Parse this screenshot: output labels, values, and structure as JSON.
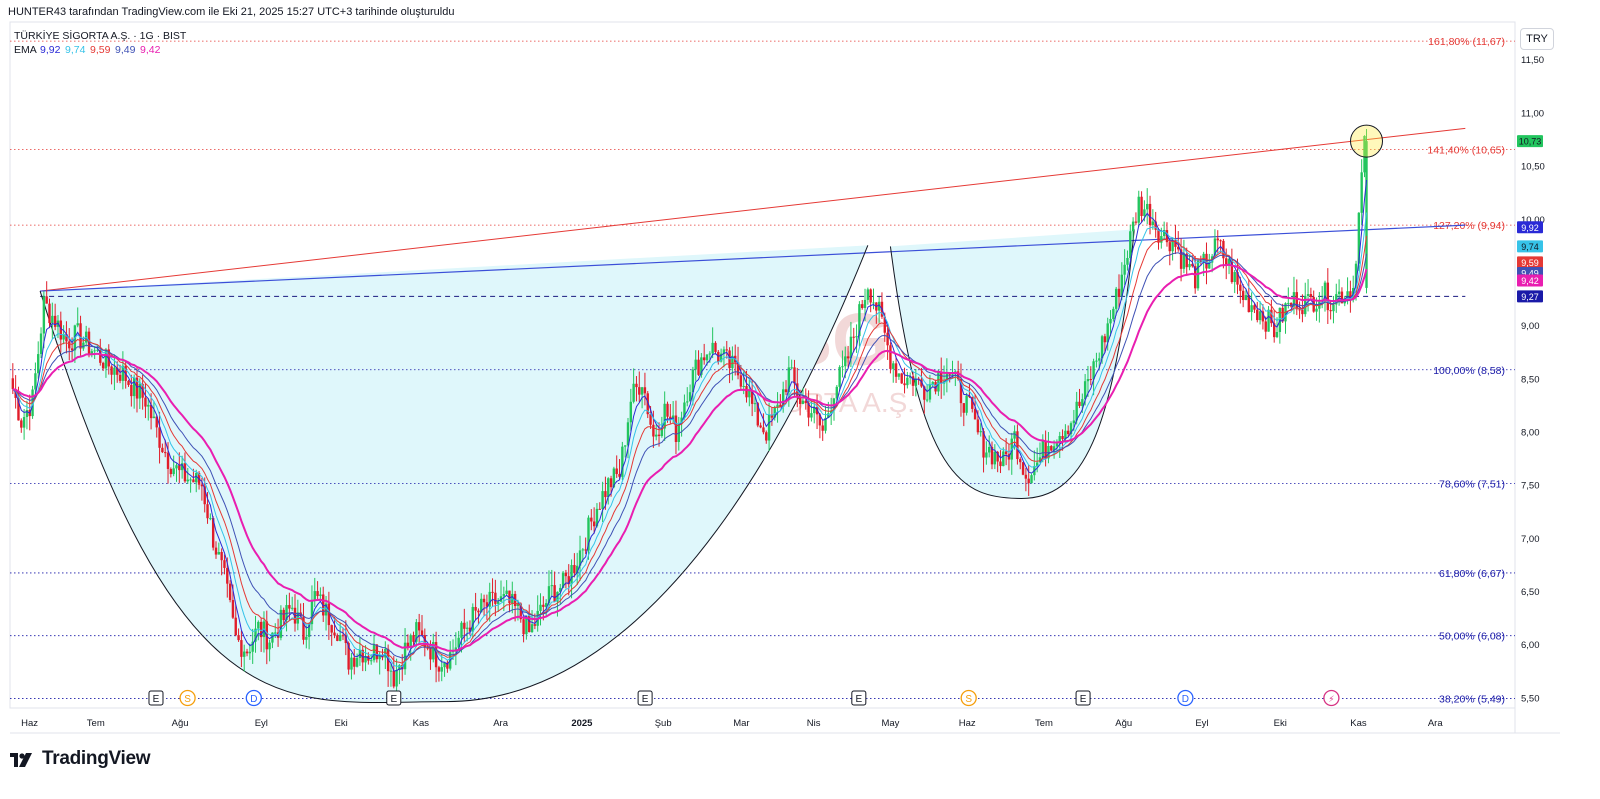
{
  "header": {
    "attribution": "HUNTER43 tarafından TradingView.com ile Eki 21, 2025 15:27 UTC+3 tarihinde oluşturuldu",
    "symbol_line": "TÜRKİYE SİGORTA A.Ş. · 1G · BIST",
    "ema_label": "EMA",
    "ema_values": [
      "9,92",
      "9,74",
      "9,59",
      "9,49",
      "9,42"
    ],
    "currency": "TRY"
  },
  "brand": {
    "name": "TradingView"
  },
  "watermark": {
    "ticker": "TURSG",
    "company": "TÜRKİYE SİGORTA A.Ş."
  },
  "colors": {
    "ema1": "#2a2ad6",
    "ema2": "#36c3e8",
    "ema3": "#e53935",
    "ema4": "#3f51b5",
    "ema5": "#e91eb0",
    "up": "#22c55e",
    "down": "#e11d2a",
    "fib": "#1a1aa8",
    "fib_red": "#e53935",
    "cup_fill": "#dff7fb",
    "price_badge": "#22c55e"
  },
  "chart_data": {
    "type": "line",
    "title": "",
    "ylim": [
      5.4,
      11.85
    ],
    "y_ticks": [
      "11,50",
      "11,00",
      "10,50",
      "10,00",
      "9,00",
      "8,50",
      "8,00",
      "7,50",
      "7,00",
      "6,50",
      "6,00",
      "5,50"
    ],
    "y_tick_values": [
      11.5,
      11.0,
      10.5,
      10.0,
      9.0,
      8.5,
      8.0,
      7.5,
      7.0,
      6.5,
      6.0,
      5.5
    ],
    "x_labels": [
      "Haz",
      "Tem",
      "Ağu",
      "Eyl",
      "Eki",
      "Kas",
      "Ara",
      "2025",
      "Şub",
      "Mar",
      "Nis",
      "May",
      "Haz",
      "Tem",
      "Ağu",
      "Eyl",
      "Eki",
      "Kas",
      "Ara"
    ],
    "fib_levels": [
      {
        "label": "161,80% (11,67)",
        "value": 11.67,
        "color": "red"
      },
      {
        "label": "141,40% (10,65)",
        "value": 10.65,
        "color": "red"
      },
      {
        "label": "127,20% (9,94)",
        "value": 9.94,
        "color": "red"
      },
      {
        "label": "100,00% (8,58)",
        "value": 8.58,
        "color": "blue"
      },
      {
        "label": "78,60% (7,51)",
        "value": 7.51,
        "color": "blue"
      },
      {
        "label": "61,80% (6,67)",
        "value": 6.67,
        "color": "blue"
      },
      {
        "label": "50,00% (6,08)",
        "value": 6.08,
        "color": "blue"
      },
      {
        "label": "38,20% (5,49)",
        "value": 5.49,
        "color": "blue"
      }
    ],
    "price_badges": [
      {
        "label": "10,73",
        "value": 10.73,
        "color": "#22c55e"
      },
      {
        "label": "9,92",
        "value": 9.92,
        "color": "#2a2ad6"
      },
      {
        "label": "9,74",
        "value": 9.74,
        "color": "#36c3e8"
      },
      {
        "label": "9,59",
        "value": 9.59,
        "color": "#e53935"
      },
      {
        "label": "9,49",
        "value": 9.49,
        "color": "#3f51b5"
      },
      {
        "label": "9,42",
        "value": 9.42,
        "color": "#e91eb0"
      },
      {
        "label": "9,27",
        "value": 9.27,
        "color": "#1a1aa8"
      }
    ],
    "event_markers": [
      {
        "label": "E",
        "x_frac": 0.097
      },
      {
        "label": "S",
        "x_frac": 0.118
      },
      {
        "label": "D",
        "x_frac": 0.162
      },
      {
        "label": "E",
        "x_frac": 0.255
      },
      {
        "label": "E",
        "x_frac": 0.422
      },
      {
        "label": "E",
        "x_frac": 0.564
      },
      {
        "label": "S",
        "x_frac": 0.637
      },
      {
        "label": "E",
        "x_frac": 0.713
      },
      {
        "label": "D",
        "x_frac": 0.781
      },
      {
        "label": "⚡",
        "x_frac": 0.878
      }
    ],
    "trendlines": [
      {
        "name": "resistance-red",
        "from": [
          0.02,
          9.32
        ],
        "to": [
          0.967,
          10.85
        ]
      },
      {
        "name": "neckline-blue",
        "from": [
          0.02,
          9.32
        ],
        "to": [
          0.967,
          9.94
        ]
      },
      {
        "name": "support-dashed",
        "from": [
          0.02,
          9.27
        ],
        "to": [
          0.967,
          9.27
        ]
      }
    ],
    "close_series": [
      8.5,
      8.1,
      8.3,
      9.2,
      9.05,
      8.85,
      8.9,
      8.8,
      8.7,
      8.6,
      8.55,
      8.4,
      8.3,
      8.0,
      7.75,
      7.6,
      7.55,
      7.5,
      7.0,
      6.6,
      6.05,
      5.95,
      6.15,
      6.05,
      6.2,
      6.35,
      6.1,
      6.45,
      6.3,
      6.15,
      5.85,
      5.95,
      5.9,
      6.0,
      5.7,
      5.95,
      6.1,
      6.0,
      5.85,
      5.9,
      6.1,
      6.25,
      6.35,
      6.4,
      6.4,
      6.3,
      6.1,
      6.3,
      6.5,
      6.55,
      6.75,
      7.0,
      7.3,
      7.5,
      7.6,
      8.3,
      8.5,
      7.95,
      8.2,
      8.0,
      8.4,
      8.65,
      8.8,
      8.7,
      8.6,
      8.5,
      8.15,
      8.0,
      8.2,
      8.55,
      8.3,
      8.2,
      8.0,
      8.4,
      8.6,
      9.0,
      9.4,
      9.1,
      8.7,
      8.5,
      8.5,
      8.4,
      8.5,
      8.6,
      8.4,
      8.2,
      7.9,
      7.8,
      7.7,
      7.95,
      7.6,
      7.7,
      7.9,
      8.0,
      8.1,
      8.3,
      8.6,
      8.9,
      9.25,
      9.7,
      10.15,
      10.05,
      9.85,
      9.8,
      9.6,
      9.45,
      9.6,
      9.75,
      9.55,
      9.3,
      9.2,
      9.1,
      8.95,
      9.15,
      9.25,
      9.2,
      9.3,
      9.25,
      9.3,
      9.35,
      10.73
    ],
    "x_labels_note": ""
  }
}
